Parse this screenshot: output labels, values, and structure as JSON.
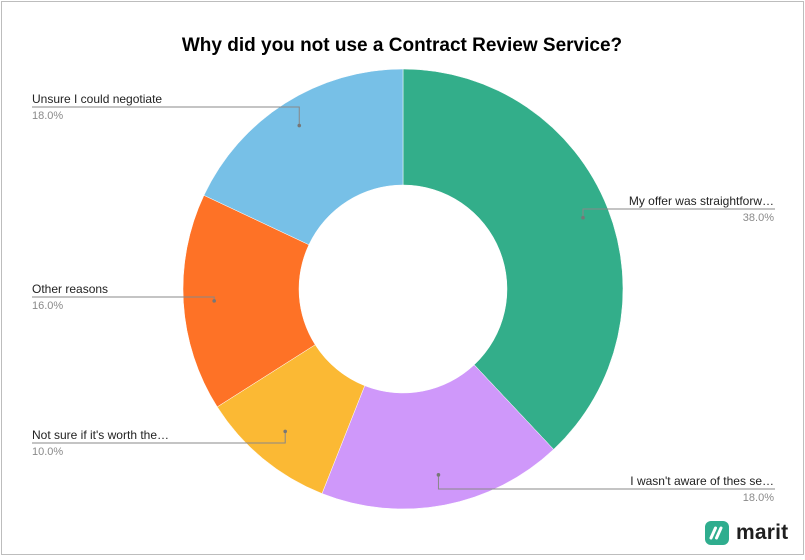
{
  "chart_data": {
    "type": "pie",
    "donut": true,
    "title": "Why did you not use a Contract Review Service?",
    "slices": [
      {
        "label": "My offer was straightforw…",
        "value": 38.0,
        "value_label": "38.0%",
        "color": "#33ae8a"
      },
      {
        "label": "I wasn't aware of thes se…",
        "value": 18.0,
        "value_label": "18.0%",
        "color": "#cf98fa"
      },
      {
        "label": "Not sure if it's worth the…",
        "value": 10.0,
        "value_label": "10.0%",
        "color": "#fbb934"
      },
      {
        "label": "Other reasons",
        "value": 16.0,
        "value_label": "16.0%",
        "color": "#fe7226"
      },
      {
        "label": "Unsure I could negotiate",
        "value": 18.0,
        "value_label": "18.0%",
        "color": "#77c0e7"
      }
    ],
    "legend": "none"
  },
  "brand": {
    "name": "marit",
    "icon": "marit-logo-icon",
    "color": "#2fad8e"
  }
}
